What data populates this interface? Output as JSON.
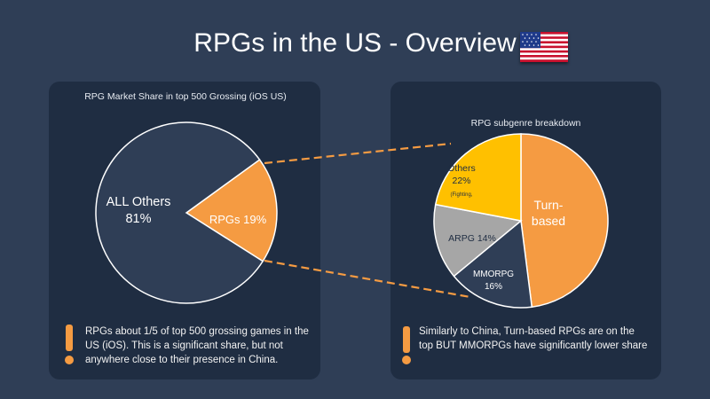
{
  "title": "RPGs in the US - Overview",
  "colors": {
    "background": "#2f3e56",
    "panel": "#1f2d42",
    "orange": "#f59b42",
    "navy": "#2f3e56",
    "gold": "#ffc000",
    "gray": "#a6a6a6"
  },
  "left": {
    "chart_title": "RPG Market Share in top 500 Grossing (iOS US)",
    "note": "RPGs about 1/5 of top 500 grossing games in the US (iOS). This is a significant share, but not anywhere close to their presence in China.",
    "exclamation": "!"
  },
  "right": {
    "chart_title": "RPG subgenre breakdown",
    "note": "Similarly to China, Turn-based RPGs are on the top BUT MMORPGs  have significantly lower share",
    "exclamation": "!"
  },
  "chart_data": [
    {
      "type": "pie",
      "title": "RPG Market Share in top 500 Grossing (iOS US)",
      "slices": [
        {
          "label": "RPGs",
          "value": 19,
          "display": "RPGs 19%",
          "color": "#f59b42"
        },
        {
          "label": "ALL Others",
          "value": 81,
          "display_lines": [
            "ALL Others",
            "81%"
          ],
          "color": "#2f3e56"
        }
      ]
    },
    {
      "type": "pie",
      "title": "RPG subgenre breakdown",
      "slices": [
        {
          "label": "Turn-based",
          "value": 48,
          "display_lines": [
            "Turn-",
            "based"
          ],
          "color": "#f59b42"
        },
        {
          "label": "MMORPG",
          "value": 16,
          "display_lines": [
            "MMORPG",
            "16%"
          ],
          "color": "#2f3e56"
        },
        {
          "label": "ARPG",
          "value": 14,
          "display_lines": [
            "ARPG 14%"
          ],
          "color": "#a6a6a6"
        },
        {
          "label": "Others",
          "value": 22,
          "display_lines": [
            "Others",
            "22%",
            "(Fighting,"
          ],
          "color": "#ffc000"
        }
      ]
    }
  ]
}
